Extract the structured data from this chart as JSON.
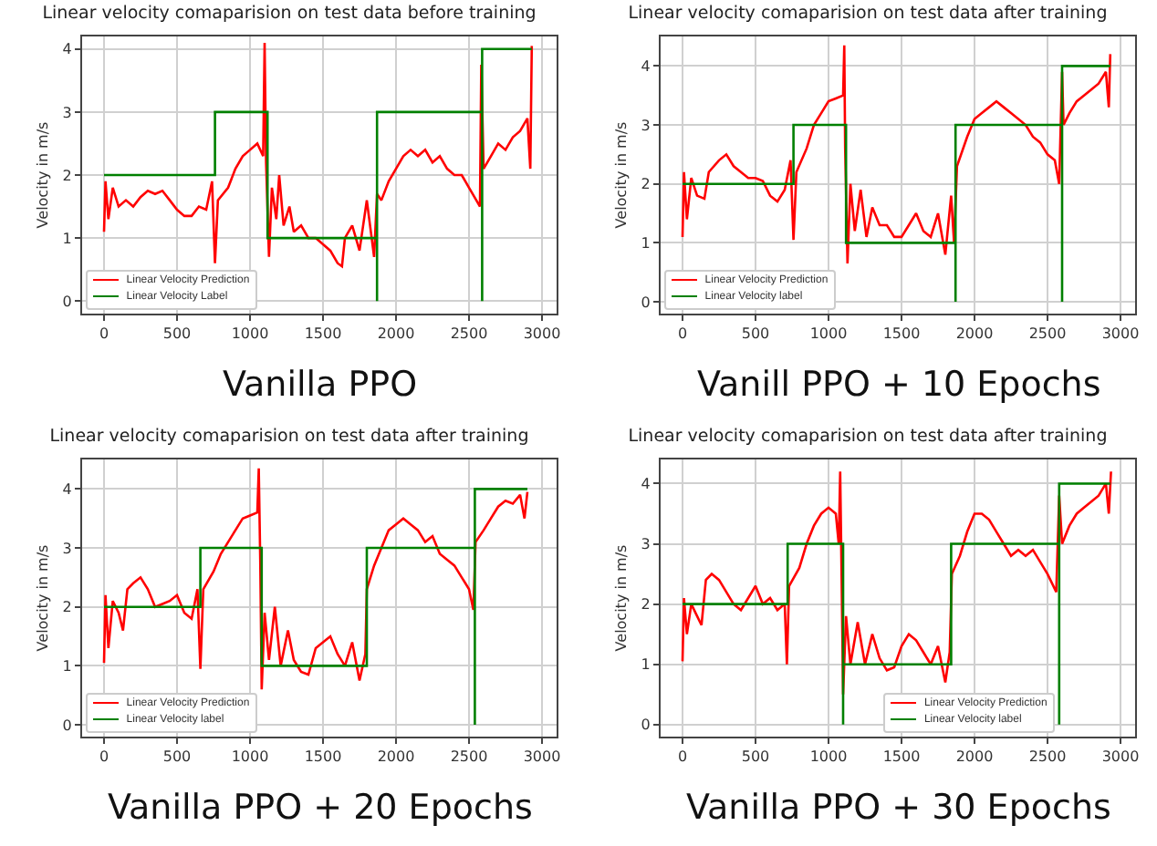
{
  "chart_data": [
    {
      "type": "line",
      "title": "Linear velocity comaparision on test data before training",
      "ylabel": "Velocity in m/s",
      "annotations": [
        "Vanilla PPO"
      ],
      "xlim": [
        -150,
        3100
      ],
      "ylim": [
        -0.2,
        4.2
      ],
      "xticks": [
        0,
        500,
        1000,
        1500,
        2000,
        2500,
        3000
      ],
      "yticks": [
        0,
        1,
        2,
        3,
        4
      ],
      "grid": true,
      "legend": "bottom left",
      "series": [
        {
          "name": "Linear Velocity Prediction",
          "color": "#ff0000",
          "x": [
            0,
            10,
            30,
            60,
            100,
            150,
            200,
            250,
            300,
            350,
            400,
            450,
            500,
            550,
            600,
            650,
            700,
            740,
            760,
            780,
            850,
            900,
            950,
            1000,
            1050,
            1090,
            1100,
            1110,
            1130,
            1150,
            1180,
            1200,
            1230,
            1270,
            1300,
            1350,
            1400,
            1450,
            1500,
            1550,
            1600,
            1630,
            1650,
            1700,
            1750,
            1800,
            1850,
            1870,
            1900,
            1950,
            2000,
            2050,
            2100,
            2150,
            2200,
            2250,
            2300,
            2350,
            2400,
            2450,
            2500,
            2550,
            2575,
            2584,
            2600,
            2650,
            2700,
            2750,
            2800,
            2850,
            2900,
            2920,
            2930
          ],
          "values": [
            1.1,
            1.9,
            1.3,
            1.8,
            1.5,
            1.6,
            1.5,
            1.65,
            1.75,
            1.7,
            1.75,
            1.6,
            1.45,
            1.35,
            1.35,
            1.5,
            1.45,
            1.9,
            0.6,
            1.6,
            1.8,
            2.1,
            2.3,
            2.4,
            2.5,
            2.3,
            4.1,
            2.2,
            0.7,
            1.8,
            1.3,
            2.0,
            1.2,
            1.5,
            1.1,
            1.2,
            1.0,
            1.0,
            0.9,
            0.8,
            0.6,
            0.55,
            1.0,
            1.2,
            0.8,
            1.6,
            0.7,
            1.7,
            1.6,
            1.9,
            2.1,
            2.3,
            2.4,
            2.3,
            2.4,
            2.2,
            2.3,
            2.1,
            2.0,
            2.0,
            1.8,
            1.6,
            1.5,
            3.75,
            2.1,
            2.3,
            2.5,
            2.4,
            2.6,
            2.7,
            2.9,
            2.1,
            4.05
          ]
        },
        {
          "name": "Linear Velocity Label",
          "color": "#008000",
          "x": [
            0,
            760,
            760,
            1120,
            1120,
            1870,
            1870,
            1870,
            2590,
            2590,
            2590,
            2930
          ],
          "values": [
            2,
            2,
            3,
            3,
            1,
            1,
            0,
            3,
            3,
            0,
            4,
            4
          ]
        }
      ]
    },
    {
      "type": "line",
      "title": "Linear velocity comaparision on test data after training",
      "ylabel": "Velocity in m/s",
      "annotations": [
        "Vanill PPO + 10 Epochs"
      ],
      "xlim": [
        -150,
        3100
      ],
      "ylim": [
        -0.2,
        4.5
      ],
      "xticks": [
        0,
        500,
        1000,
        1500,
        2000,
        2500,
        3000
      ],
      "yticks": [
        0,
        1,
        2,
        3,
        4
      ],
      "grid": true,
      "legend": "bottom left",
      "series": [
        {
          "name": "Linear Velocity Prediction",
          "color": "#ff0000",
          "x": [
            0,
            10,
            30,
            60,
            100,
            150,
            180,
            250,
            300,
            350,
            400,
            450,
            500,
            550,
            600,
            650,
            700,
            740,
            760,
            780,
            850,
            900,
            950,
            1000,
            1050,
            1100,
            1108,
            1114,
            1130,
            1150,
            1180,
            1220,
            1260,
            1300,
            1350,
            1400,
            1450,
            1500,
            1550,
            1600,
            1650,
            1700,
            1750,
            1800,
            1840,
            1860,
            1880,
            1950,
            2000,
            2050,
            2100,
            2150,
            2200,
            2250,
            2300,
            2350,
            2400,
            2450,
            2500,
            2550,
            2580,
            2600,
            2610,
            2650,
            2700,
            2750,
            2800,
            2850,
            2900,
            2920,
            2930
          ],
          "values": [
            1.1,
            2.2,
            1.4,
            2.1,
            1.8,
            1.75,
            2.2,
            2.4,
            2.5,
            2.3,
            2.2,
            2.1,
            2.1,
            2.05,
            1.8,
            1.7,
            1.9,
            2.4,
            1.05,
            2.2,
            2.6,
            3.0,
            3.2,
            3.4,
            3.45,
            3.5,
            4.35,
            2.6,
            0.65,
            2.0,
            1.2,
            1.9,
            1.1,
            1.6,
            1.3,
            1.3,
            1.1,
            1.1,
            1.3,
            1.5,
            1.2,
            1.1,
            1.5,
            0.8,
            1.8,
            1.0,
            2.3,
            2.8,
            3.1,
            3.2,
            3.3,
            3.4,
            3.3,
            3.2,
            3.1,
            3.0,
            2.8,
            2.7,
            2.5,
            2.4,
            2.0,
            3.9,
            3.0,
            3.2,
            3.4,
            3.5,
            3.6,
            3.7,
            3.9,
            3.3,
            4.2
          ]
        },
        {
          "name": "Linear Velocity label",
          "color": "#008000",
          "x": [
            0,
            760,
            760,
            1120,
            1120,
            1870,
            1870,
            1870,
            2600,
            2600,
            2600,
            2930
          ],
          "values": [
            2,
            2,
            3,
            3,
            1,
            1,
            0,
            3,
            3,
            0,
            4,
            4
          ]
        }
      ]
    },
    {
      "type": "line",
      "title": "Linear velocity comaparision on test data after training",
      "ylabel": "Velocity in m/s",
      "annotations": [
        "Vanilla PPO + 20 Epochs"
      ],
      "xlim": [
        -150,
        3100
      ],
      "ylim": [
        -0.2,
        4.5
      ],
      "xticks": [
        0,
        500,
        1000,
        1500,
        2000,
        2500,
        3000
      ],
      "yticks": [
        0,
        1,
        2,
        3,
        4
      ],
      "grid": true,
      "legend": "bottom left",
      "series": [
        {
          "name": "Linear Velocity Prediction",
          "color": "#ff0000",
          "x": [
            0,
            10,
            30,
            60,
            100,
            130,
            160,
            200,
            250,
            300,
            350,
            400,
            450,
            500,
            550,
            600,
            640,
            660,
            680,
            750,
            800,
            850,
            900,
            950,
            1000,
            1050,
            1060,
            1070,
            1080,
            1100,
            1130,
            1170,
            1210,
            1260,
            1300,
            1350,
            1400,
            1450,
            1500,
            1550,
            1600,
            1650,
            1700,
            1750,
            1790,
            1800,
            1850,
            1900,
            1950,
            2000,
            2050,
            2100,
            2150,
            2200,
            2250,
            2300,
            2350,
            2400,
            2450,
            2500,
            2530,
            2545,
            2600,
            2650,
            2700,
            2750,
            2800,
            2850,
            2880,
            2900
          ],
          "values": [
            1.05,
            2.2,
            1.3,
            2.1,
            1.9,
            1.6,
            2.3,
            2.4,
            2.5,
            2.3,
            2.0,
            2.05,
            2.1,
            2.2,
            1.9,
            1.8,
            2.3,
            0.95,
            2.3,
            2.6,
            2.9,
            3.1,
            3.3,
            3.5,
            3.55,
            3.6,
            4.35,
            2.8,
            0.6,
            1.9,
            1.1,
            2.0,
            1.0,
            1.6,
            1.1,
            0.9,
            0.85,
            1.3,
            1.4,
            1.5,
            1.2,
            1.0,
            1.4,
            0.75,
            1.2,
            2.3,
            2.7,
            3.0,
            3.3,
            3.4,
            3.5,
            3.4,
            3.3,
            3.1,
            3.2,
            2.9,
            2.8,
            2.7,
            2.5,
            2.3,
            1.95,
            3.1,
            3.3,
            3.5,
            3.7,
            3.8,
            3.75,
            3.9,
            3.5,
            3.95
          ]
        },
        {
          "name": "Linear Velocity label",
          "color": "#008000",
          "x": [
            0,
            660,
            660,
            1080,
            1080,
            1800,
            1800,
            2540,
            2540,
            2540,
            2900
          ],
          "values": [
            2,
            2,
            3,
            3,
            1,
            1,
            3,
            3,
            0,
            4,
            4
          ]
        }
      ]
    },
    {
      "type": "line",
      "title": "Linear velocity comaparision on test data after training",
      "ylabel": "Velocity in m/s",
      "annotations": [
        "Vanilla PPO + 30 Epochs"
      ],
      "xlim": [
        -150,
        3100
      ],
      "ylim": [
        -0.2,
        4.4
      ],
      "xticks": [
        0,
        500,
        1000,
        1500,
        2000,
        2500,
        3000
      ],
      "yticks": [
        0,
        1,
        2,
        3,
        4
      ],
      "grid": true,
      "legend": "bottom right",
      "series": [
        {
          "name": "Linear Velocity Prediction",
          "color": "#ff0000",
          "x": [
            0,
            10,
            30,
            60,
            100,
            130,
            160,
            200,
            250,
            300,
            350,
            400,
            450,
            500,
            550,
            600,
            650,
            700,
            715,
            730,
            800,
            850,
            900,
            950,
            1000,
            1050,
            1070,
            1080,
            1090,
            1100,
            1120,
            1150,
            1200,
            1250,
            1300,
            1350,
            1400,
            1450,
            1500,
            1550,
            1600,
            1650,
            1700,
            1750,
            1800,
            1830,
            1845,
            1900,
            1950,
            2000,
            2050,
            2100,
            2150,
            2200,
            2250,
            2300,
            2350,
            2400,
            2450,
            2500,
            2560,
            2580,
            2600,
            2650,
            2700,
            2750,
            2800,
            2850,
            2900,
            2920,
            2935
          ],
          "values": [
            1.05,
            2.1,
            1.5,
            2.0,
            1.8,
            1.65,
            2.4,
            2.5,
            2.4,
            2.2,
            2.0,
            1.9,
            2.1,
            2.3,
            2.0,
            2.1,
            1.9,
            2.0,
            1.0,
            2.3,
            2.6,
            3.0,
            3.3,
            3.5,
            3.6,
            3.5,
            3.0,
            4.2,
            2.4,
            0.5,
            1.8,
            1.0,
            1.7,
            1.0,
            1.5,
            1.1,
            0.9,
            0.95,
            1.3,
            1.5,
            1.4,
            1.2,
            1.0,
            1.3,
            0.7,
            1.2,
            2.5,
            2.8,
            3.2,
            3.5,
            3.5,
            3.4,
            3.2,
            3.0,
            2.8,
            2.9,
            2.8,
            2.9,
            2.7,
            2.5,
            2.2,
            3.8,
            3.0,
            3.3,
            3.5,
            3.6,
            3.7,
            3.8,
            4.0,
            3.5,
            4.2
          ]
        },
        {
          "name": "Linear Velocity label",
          "color": "#008000",
          "x": [
            0,
            720,
            720,
            1100,
            1100,
            1100,
            1840,
            1840,
            2580,
            2580,
            2580,
            2930
          ],
          "values": [
            2,
            2,
            3,
            3,
            0,
            1,
            1,
            3,
            3,
            0,
            4,
            4
          ]
        }
      ]
    }
  ]
}
